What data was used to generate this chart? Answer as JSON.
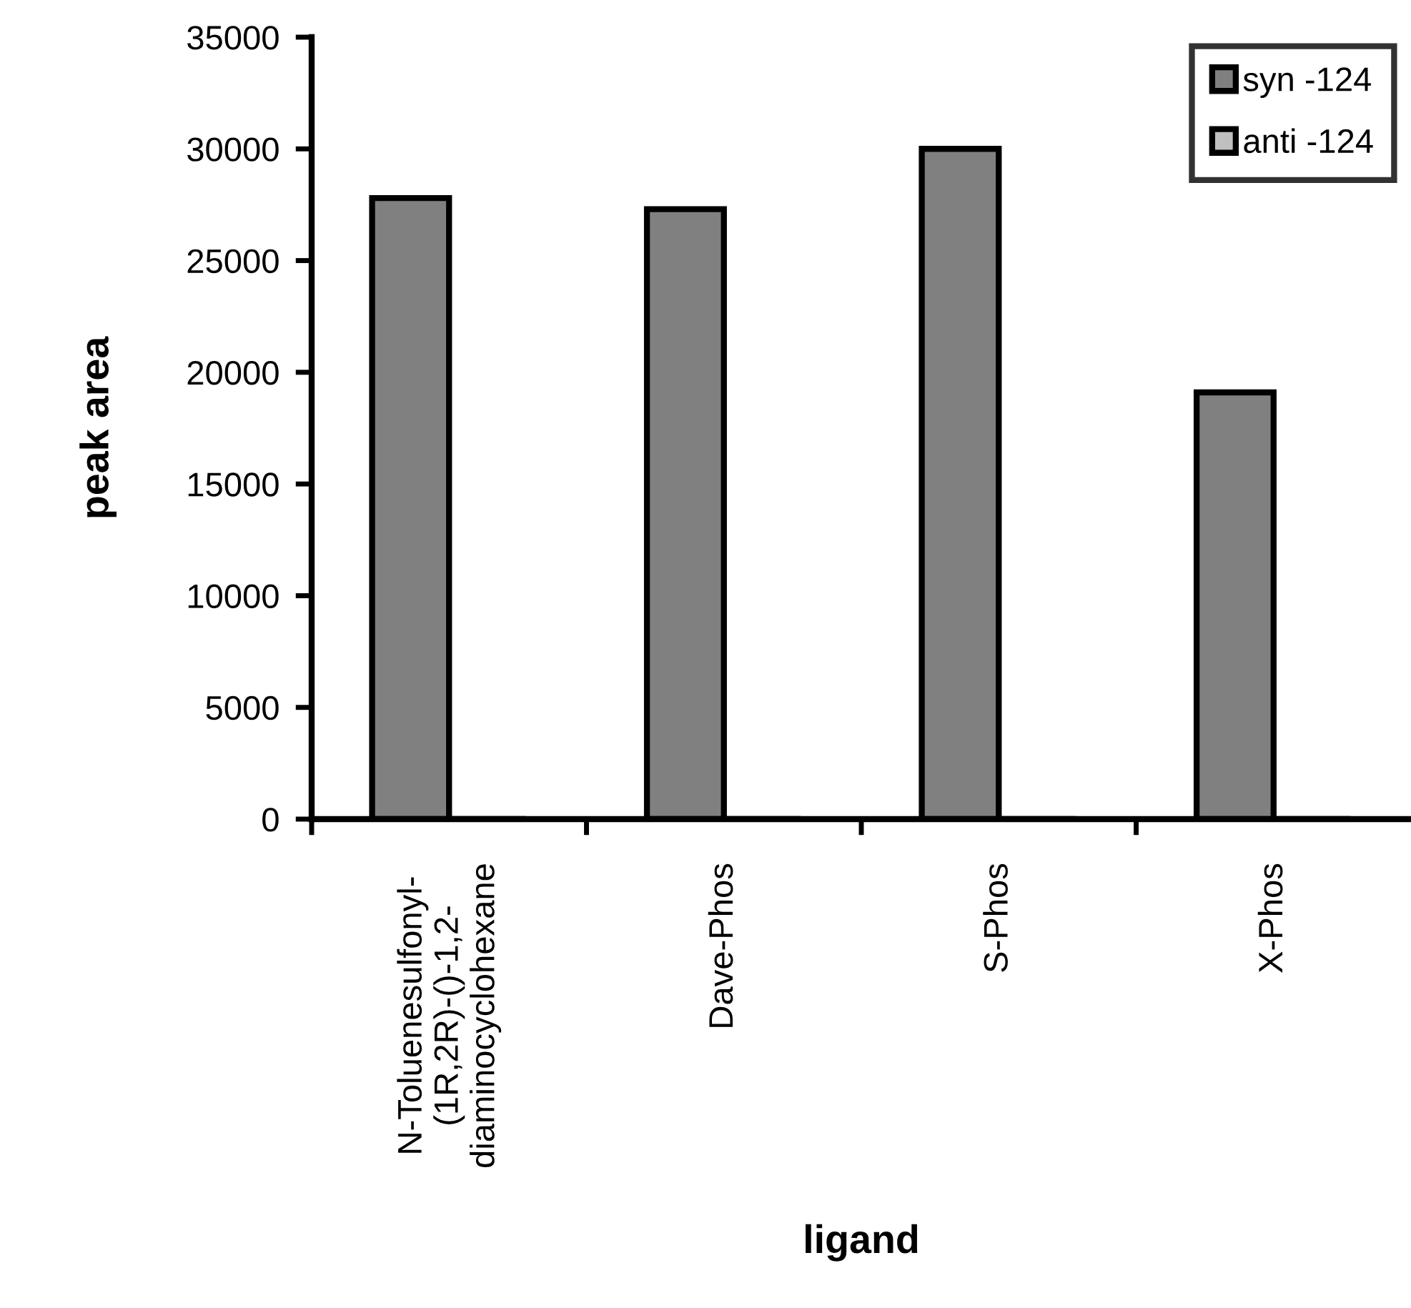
{
  "chart_data": {
    "type": "bar",
    "xlabel": "ligand",
    "ylabel": "peak area",
    "categories": [
      "N-Toluenesulfonyl-\n(1R,2R)-()-1,2-\ndiaminocyclohexane",
      "Dave-Phos",
      "S-Phos",
      "X-Phos"
    ],
    "series": [
      {
        "name": "syn -124",
        "color": "#808080",
        "values": [
          27800,
          27300,
          30000,
          19100
        ]
      },
      {
        "name": "anti -124",
        "color": "#c0c0c0",
        "values": [
          0,
          0,
          0,
          0
        ]
      }
    ],
    "ylim": [
      0,
      35000
    ],
    "yticks": [
      0,
      5000,
      10000,
      15000,
      20000,
      25000,
      30000,
      35000
    ],
    "grid": false,
    "legend": "top right"
  }
}
